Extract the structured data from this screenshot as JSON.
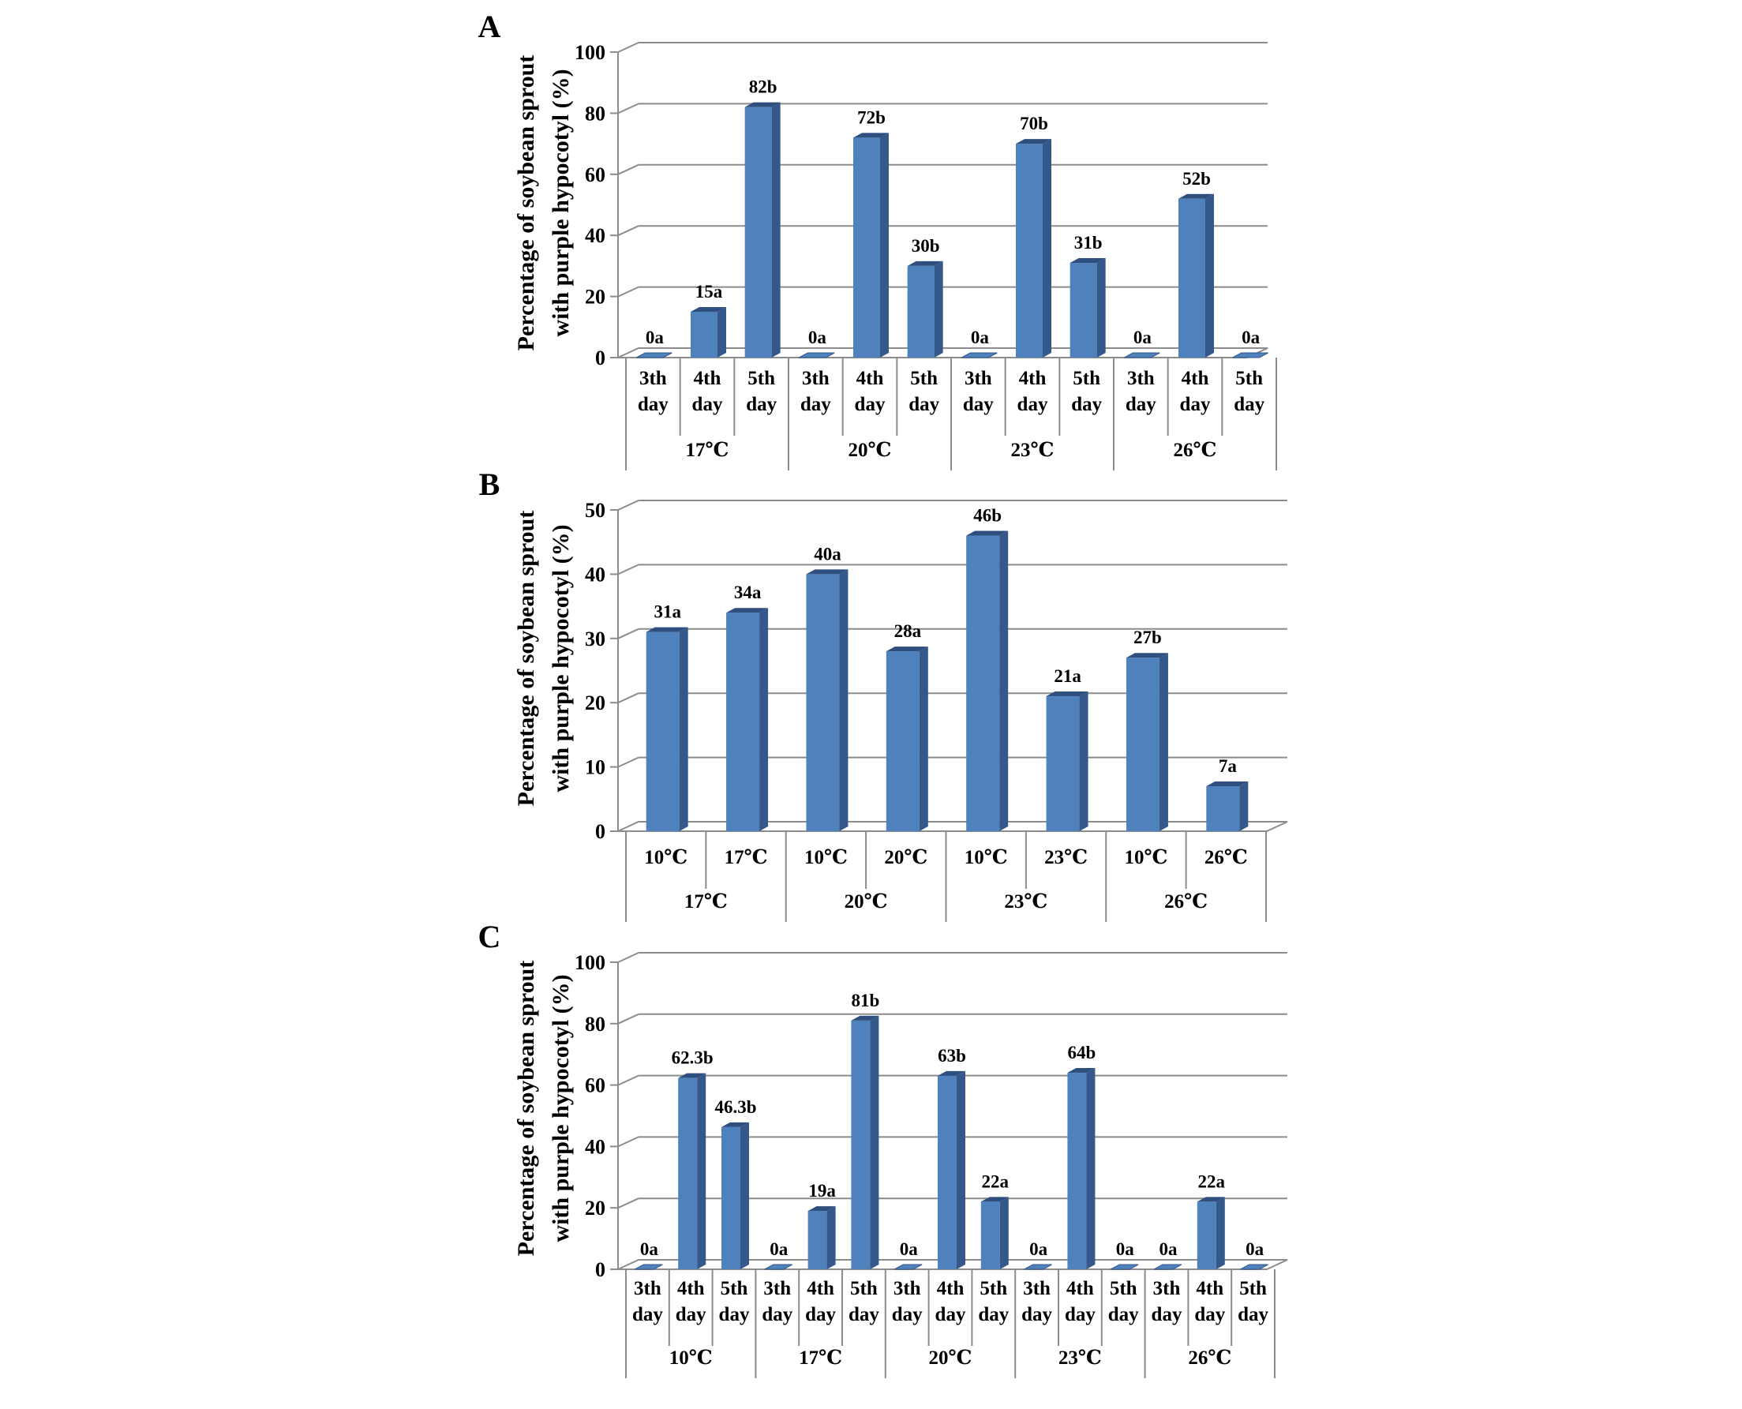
{
  "chart_data": [
    {
      "type": "bar",
      "panel": "A",
      "ylabel_lines": [
        "Percentage of soybean sprout",
        "with purple hypocotyl (%)"
      ],
      "ylim": [
        0,
        100
      ],
      "yticks": [
        0,
        20,
        40,
        60,
        80,
        100
      ],
      "grid": true,
      "groups": [
        {
          "name": "17℃",
          "bars": [
            {
              "line1": "3th",
              "line2": "day",
              "value": 0,
              "label": "0a"
            },
            {
              "line1": "4th",
              "line2": "day",
              "value": 15,
              "label": "15a"
            },
            {
              "line1": "5th",
              "line2": "day",
              "value": 82,
              "label": "82b"
            }
          ]
        },
        {
          "name": "20℃",
          "bars": [
            {
              "line1": "3th",
              "line2": "day",
              "value": 0,
              "label": "0a"
            },
            {
              "line1": "4th",
              "line2": "day",
              "value": 72,
              "label": "72b"
            },
            {
              "line1": "5th",
              "line2": "day",
              "value": 30,
              "label": "30b"
            }
          ]
        },
        {
          "name": "23℃",
          "bars": [
            {
              "line1": "3th",
              "line2": "day",
              "value": 0,
              "label": "0a"
            },
            {
              "line1": "4th",
              "line2": "day",
              "value": 70,
              "label": "70b"
            },
            {
              "line1": "5th",
              "line2": "day",
              "value": 31,
              "label": "31b"
            }
          ]
        },
        {
          "name": "26℃",
          "bars": [
            {
              "line1": "3th",
              "line2": "day",
              "value": 0,
              "label": "0a"
            },
            {
              "line1": "4th",
              "line2": "day",
              "value": 52,
              "label": "52b"
            },
            {
              "line1": "5th",
              "line2": "day",
              "value": 0,
              "label": "0a"
            }
          ]
        }
      ]
    },
    {
      "type": "bar",
      "panel": "B",
      "ylabel_lines": [
        "Percentage of soybean sprout",
        "with purple hypocotyl (%)"
      ],
      "ylim": [
        0,
        50
      ],
      "yticks": [
        0,
        10,
        20,
        30,
        40,
        50
      ],
      "grid": true,
      "groups": [
        {
          "name": "17℃",
          "bars": [
            {
              "line1": "10℃",
              "line2": "",
              "value": 31,
              "label": "31a"
            },
            {
              "line1": "17℃",
              "line2": "",
              "value": 34,
              "label": "34a"
            }
          ]
        },
        {
          "name": "20℃",
          "bars": [
            {
              "line1": "10℃",
              "line2": "",
              "value": 40,
              "label": "40a"
            },
            {
              "line1": "20℃",
              "line2": "",
              "value": 28,
              "label": "28a"
            }
          ]
        },
        {
          "name": "23℃",
          "bars": [
            {
              "line1": "10℃",
              "line2": "",
              "value": 46,
              "label": "46b"
            },
            {
              "line1": "23℃",
              "line2": "",
              "value": 21,
              "label": "21a"
            }
          ]
        },
        {
          "name": "26℃",
          "bars": [
            {
              "line1": "10℃",
              "line2": "",
              "value": 27,
              "label": "27b"
            },
            {
              "line1": "26℃",
              "line2": "",
              "value": 7,
              "label": "7a"
            }
          ]
        }
      ]
    },
    {
      "type": "bar",
      "panel": "C",
      "ylabel_lines": [
        "Percentage of soybean sprout",
        "with purple hypocotyl (%)"
      ],
      "ylim": [
        0,
        100
      ],
      "yticks": [
        0,
        20,
        40,
        60,
        80,
        100
      ],
      "grid": true,
      "groups": [
        {
          "name": "10℃",
          "bars": [
            {
              "line1": "3th",
              "line2": "day",
              "value": 0,
              "label": "0a"
            },
            {
              "line1": "4th",
              "line2": "day",
              "value": 62.3,
              "label": "62.3b"
            },
            {
              "line1": "5th",
              "line2": "day",
              "value": 46.3,
              "label": "46.3b"
            }
          ]
        },
        {
          "name": "17℃",
          "bars": [
            {
              "line1": "3th",
              "line2": "day",
              "value": 0,
              "label": "0a"
            },
            {
              "line1": "4th",
              "line2": "day",
              "value": 19,
              "label": "19a"
            },
            {
              "line1": "5th",
              "line2": "day",
              "value": 81,
              "label": "81b"
            }
          ]
        },
        {
          "name": "20℃",
          "bars": [
            {
              "line1": "3th",
              "line2": "day",
              "value": 0,
              "label": "0a"
            },
            {
              "line1": "4th",
              "line2": "day",
              "value": 63,
              "label": "63b"
            },
            {
              "line1": "5th",
              "line2": "day",
              "value": 22,
              "label": "22a"
            }
          ]
        },
        {
          "name": "23℃",
          "bars": [
            {
              "line1": "3th",
              "line2": "day",
              "value": 0,
              "label": "0a"
            },
            {
              "line1": "4th",
              "line2": "day",
              "value": 64,
              "label": "64b"
            },
            {
              "line1": "5th",
              "line2": "day",
              "value": 0,
              "label": "0a"
            }
          ]
        },
        {
          "name": "26℃",
          "bars": [
            {
              "line1": "3th",
              "line2": "day",
              "value": 0,
              "label": "0a"
            },
            {
              "line1": "4th",
              "line2": "day",
              "value": 22,
              "label": "22a"
            },
            {
              "line1": "5th",
              "line2": "day",
              "value": 0,
              "label": "0a"
            }
          ]
        }
      ]
    }
  ],
  "colors": {
    "bar_front": "#4f81bd",
    "bar_side": "#35588a",
    "bar_top": "#2f4f7f",
    "grid": "#8c8c8c",
    "axis": "#8c8c8c"
  }
}
